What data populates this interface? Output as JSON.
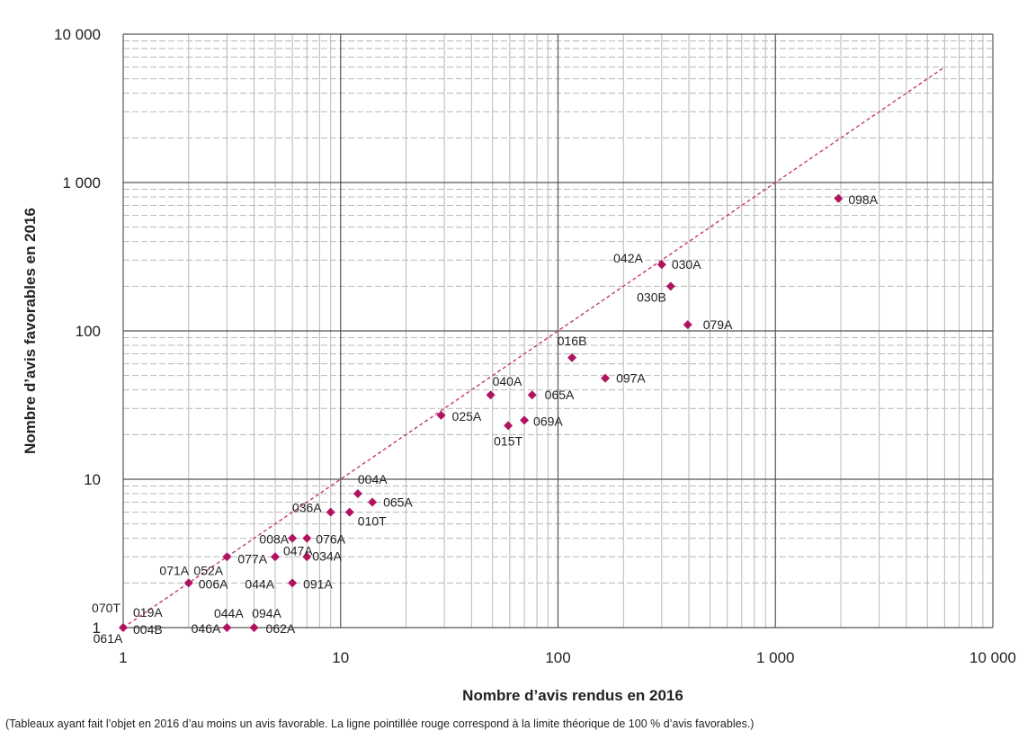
{
  "chart_data": {
    "type": "scatter",
    "x_scale": "log",
    "y_scale": "log",
    "xlim": [
      1,
      10000
    ],
    "ylim": [
      1,
      10000
    ],
    "xlabel": "Nombre d’avis rendus en 2016",
    "ylabel": "Nombre d’avis favorables en 2016",
    "x_ticks": [
      "1",
      "10",
      "100",
      "1 000",
      "10 000"
    ],
    "y_ticks": [
      "1",
      "10",
      "100",
      "1 000",
      "10 000"
    ],
    "grid": true,
    "marker_color": "#b0135f",
    "reference_line": {
      "label": "100 % d'avis favorables",
      "color": "#c43a6a",
      "style": "dotted",
      "x": [
        1,
        6000
      ],
      "y": [
        1,
        6000
      ]
    },
    "points": [
      {
        "label": "061A",
        "x": 1,
        "y": 1
      },
      {
        "label": "070T",
        "x": 1,
        "y": 1
      },
      {
        "label": "019A",
        "x": 1,
        "y": 1
      },
      {
        "label": "004B",
        "x": 1,
        "y": 1
      },
      {
        "label": "044A",
        "x": 3,
        "y": 1
      },
      {
        "label": "046A",
        "x": 3,
        "y": 1
      },
      {
        "label": "094A",
        "x": 4,
        "y": 1
      },
      {
        "label": "062A",
        "x": 4,
        "y": 1
      },
      {
        "label": "071A",
        "x": 2,
        "y": 2
      },
      {
        "label": "052A",
        "x": 2,
        "y": 2
      },
      {
        "label": "006A",
        "x": 2,
        "y": 2
      },
      {
        "label": "044A",
        "x": 6,
        "y": 2
      },
      {
        "label": "091A",
        "x": 6,
        "y": 2
      },
      {
        "label": "077A",
        "x": 3,
        "y": 3
      },
      {
        "label": "047A",
        "x": 5,
        "y": 3
      },
      {
        "label": "034A",
        "x": 7,
        "y": 3
      },
      {
        "label": "008A",
        "x": 6,
        "y": 4
      },
      {
        "label": "076A",
        "x": 7,
        "y": 4
      },
      {
        "label": "036A",
        "x": 9,
        "y": 6
      },
      {
        "label": "010T",
        "x": 11,
        "y": 6
      },
      {
        "label": "004A",
        "x": 12,
        "y": 8
      },
      {
        "label": "065A",
        "x": 14,
        "y": 7
      },
      {
        "label": "025A",
        "x": 29,
        "y": 27
      },
      {
        "label": "040A",
        "x": 49,
        "y": 37
      },
      {
        "label": "015T",
        "x": 59,
        "y": 23
      },
      {
        "label": "069A",
        "x": 70,
        "y": 25
      },
      {
        "label": "065A",
        "x": 76,
        "y": 37
      },
      {
        "label": "016B",
        "x": 116,
        "y": 66
      },
      {
        "label": "097A",
        "x": 165,
        "y": 48
      },
      {
        "label": "042A",
        "x": 300,
        "y": 280
      },
      {
        "label": "030A",
        "x": 300,
        "y": 280
      },
      {
        "label": "030B",
        "x": 330,
        "y": 200
      },
      {
        "label": "079A",
        "x": 395,
        "y": 110
      },
      {
        "label": "098A",
        "x": 1950,
        "y": 780
      }
    ],
    "note": "(Tableaux ayant fait l’objet en 2016 d’au moins un avis favorable. La ligne pointillée rouge correspond à la limite théorique de 100 % d’avis favorables.)"
  }
}
